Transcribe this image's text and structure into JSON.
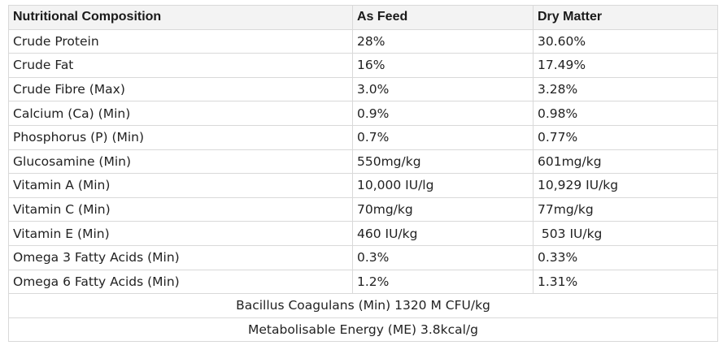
{
  "table": {
    "headers": [
      "Nutritional Composition",
      "As Feed",
      "Dry Matter"
    ],
    "rows": [
      [
        "Crude Protein",
        "28%",
        "30.60%"
      ],
      [
        "Crude Fat",
        "16%",
        "17.49%"
      ],
      [
        "Crude Fibre (Max)",
        "3.0%",
        "3.28%"
      ],
      [
        "Calcium (Ca) (Min)",
        "0.9%",
        "0.98%"
      ],
      [
        "Phosphorus (P) (Min)",
        "0.7%",
        "0.77%"
      ],
      [
        "Glucosamine (Min)",
        "550mg/kg",
        "601mg/kg"
      ],
      [
        "Vitamin A (Min)",
        "10,000 IU/lg",
        "10,929 IU/kg"
      ],
      [
        "Vitamin C (Min)",
        "70mg/kg",
        "77mg/kg"
      ],
      [
        "Vitamin E (Min)",
        "460 IU/kg",
        " 503 IU/kg"
      ],
      [
        "Omega 3 Fatty Acids (Min)",
        "0.3%",
        "0.33%"
      ],
      [
        "Omega 6 Fatty Acids (Min)",
        "1.2%",
        "1.31%"
      ]
    ],
    "footer_rows": [
      "Bacillus Coagulans (Min) 1320 M CFU/kg",
      "Metabolisable Energy (ME) 3.8kcal/g"
    ]
  }
}
